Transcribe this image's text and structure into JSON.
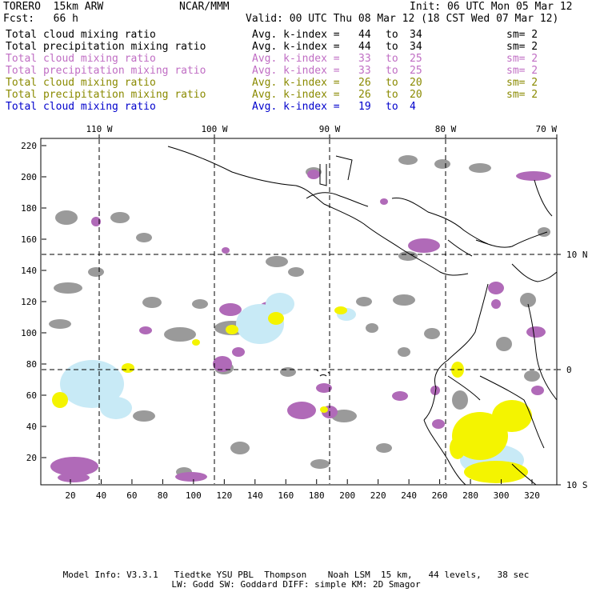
{
  "header": {
    "model": "TORERO  15km ARW",
    "org": "NCAR/MMM",
    "init": "Init: 06 UTC Mon 05 Mar 12",
    "fcst": "Fcst:   66 h",
    "valid": "Valid: 00 UTC Thu 08 Mar 12 (18 CST Wed 07 Mar 12)"
  },
  "legend": [
    {
      "label": "Total cloud mixing ratio",
      "avg": "Avg. k-index =",
      "from": "44",
      "to": "to",
      "upto": "34",
      "sm": "sm= 2",
      "color": "#000000"
    },
    {
      "label": "Total precipitation mixing ratio",
      "avg": "Avg. k-index =",
      "from": "44",
      "to": "to",
      "upto": "34",
      "sm": "sm= 2",
      "color": "#000000"
    },
    {
      "label": "Total cloud mixing ratio",
      "avg": "Avg. k-index =",
      "from": "33",
      "to": "to",
      "upto": "25",
      "sm": "sm= 2",
      "color": "#c06ec4"
    },
    {
      "label": "Total precipitation mixing ratio",
      "avg": "Avg. k-index =",
      "from": "33",
      "to": "to",
      "upto": "25",
      "sm": "sm= 2",
      "color": "#c06ec4"
    },
    {
      "label": "Total cloud mixing ratio",
      "avg": "Avg. k-index =",
      "from": "26",
      "to": "to",
      "upto": "20",
      "sm": "sm= 2",
      "color": "#8a8a00"
    },
    {
      "label": "Total precipitation mixing ratio",
      "avg": "Avg. k-index =",
      "from": "26",
      "to": "to",
      "upto": "20",
      "sm": "sm= 2",
      "color": "#8a8a00"
    },
    {
      "label": "Total cloud mixing ratio",
      "avg": "Avg. k-index =",
      "from": "19",
      "to": "to",
      "upto": "4",
      "sm": "",
      "color": "#0000cc"
    }
  ],
  "map": {
    "lon_labels": [
      "110 W",
      "100 W",
      "90 W",
      "80 W",
      "70 W"
    ],
    "lat_labels": [
      "10 N",
      "0",
      "10 S"
    ],
    "x_ticks": [
      "20",
      "40",
      "60",
      "80",
      "100",
      "120",
      "140",
      "160",
      "180",
      "200",
      "220",
      "240",
      "260",
      "280",
      "300",
      "320"
    ],
    "y_ticks": [
      "20",
      "40",
      "60",
      "80",
      "100",
      "120",
      "140",
      "160",
      "180",
      "200",
      "220"
    ],
    "colors": {
      "gray_cloud": "#9a9a9a",
      "purple": "#b06ab8",
      "yellow": "#f4f400",
      "light_blue": "#c8eaf6",
      "dark_gray": "#555555"
    }
  },
  "footer": {
    "line1": "Model Info: V3.3.1   Tiedtke YSU PBL  Thompson    Noah LSM  15 km,   44 levels,   38 sec",
    "line2": "LW: Godd SW: Goddard DIFF: simple KM: 2D Smagor"
  }
}
